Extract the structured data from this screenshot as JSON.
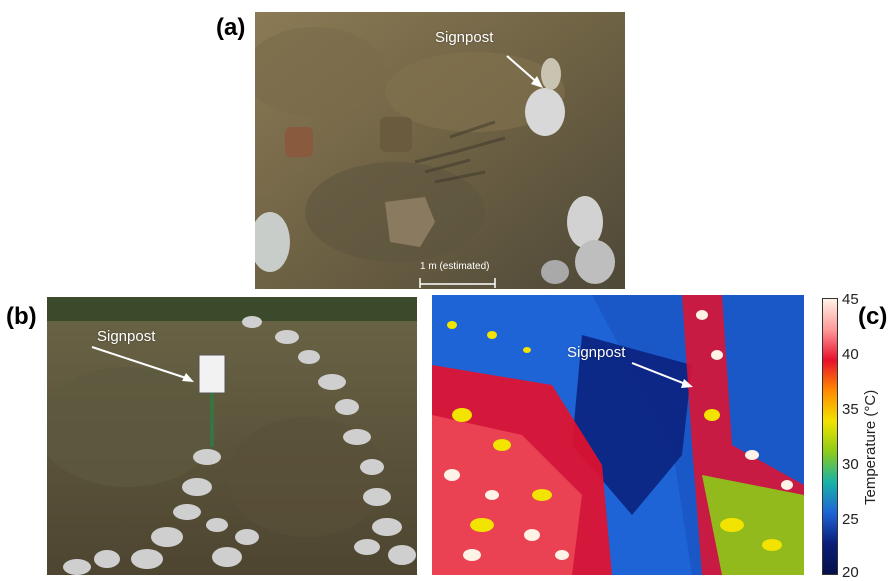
{
  "panels": {
    "a": {
      "label": "(a)",
      "annotation": "Signpost",
      "scalebar": "1 m (estimated)"
    },
    "b": {
      "label": "(b)",
      "annotation": "Signpost"
    },
    "c": {
      "label": "(c)",
      "annotation": "Signpost"
    }
  },
  "colorbar": {
    "title": "Temperature (°C)",
    "ticks": [
      "45",
      "40",
      "35",
      "30",
      "25",
      "20"
    ],
    "colors": [
      "#fff2e6",
      "#ff9a9a",
      "#e8102b",
      "#ff8a00",
      "#f2e300",
      "#8ccc1a",
      "#17b3a8",
      "#1f64d6",
      "#0a1e7a",
      "#05104a"
    ]
  }
}
